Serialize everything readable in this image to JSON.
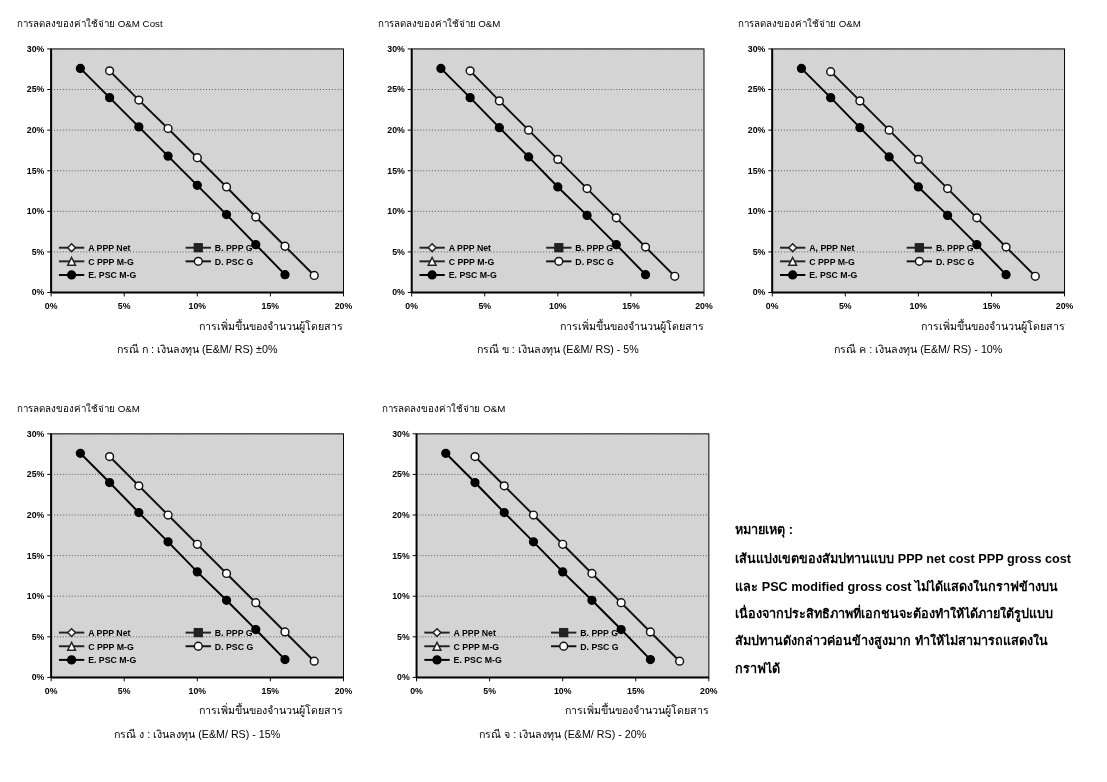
{
  "chart_data": [
    {
      "type": "line",
      "ylabel": "การลดลงของค่าใช้จ่าย O&M Cost",
      "xlabel": "การเพิ่มขึ้นของจำนวนผู้โดยสาร",
      "annotations": [
        "กรณี ก : เงินลงทุน (E&M/ RS) ±0%"
      ],
      "xlim": [
        0,
        20
      ],
      "ylim": [
        0,
        30
      ],
      "xticks": [
        {
          "value": 0,
          "label": "0%"
        },
        {
          "value": 5,
          "label": "5%"
        },
        {
          "value": 10,
          "label": "10%"
        },
        {
          "value": 15,
          "label": "15%"
        },
        {
          "value": 20,
          "label": "20%"
        }
      ],
      "yticks": [
        {
          "value": 0,
          "label": "0%"
        },
        {
          "value": 5,
          "label": "5%"
        },
        {
          "value": 10,
          "label": "10%"
        },
        {
          "value": 15,
          "label": "15%"
        },
        {
          "value": 20,
          "label": "20%"
        },
        {
          "value": 25,
          "label": "25%"
        },
        {
          "value": 30,
          "label": "30%"
        }
      ],
      "grid": "y",
      "legend": "bottom left",
      "series": [
        {
          "name": "A PPP Net",
          "color": "#222222",
          "marker": "diamond"
        },
        {
          "name": "B. PPP G",
          "color": "#222222",
          "marker": "square"
        },
        {
          "name": "C PPP M-G",
          "color": "#222222",
          "marker": "triangle"
        },
        {
          "name": "D. PSC G",
          "color": "#111111",
          "marker": "circle",
          "x": [
            4,
            6,
            8,
            10,
            12,
            14,
            16,
            18
          ],
          "values": [
            27.3,
            23.7,
            20.2,
            16.6,
            13.0,
            9.3,
            5.7,
            2.1
          ]
        },
        {
          "name": "E. PSC M-G",
          "color": "#000000",
          "marker": "circle",
          "x": [
            2,
            4,
            6,
            8,
            10,
            12,
            14,
            16
          ],
          "values": [
            27.6,
            24.0,
            20.4,
            16.8,
            13.2,
            9.6,
            5.9,
            2.2
          ]
        }
      ]
    },
    {
      "type": "line",
      "ylabel": "การลดลงของค่าใช้จ่าย O&M",
      "xlabel": "การเพิ่มขึ้นของจำนวนผู้โดยสาร",
      "annotations": [
        "กรณี ข : เงินลงทุน (E&M/ RS) - 5%"
      ],
      "xlim": [
        0,
        20
      ],
      "ylim": [
        0,
        30
      ],
      "xticks": [
        {
          "value": 0,
          "label": "0%"
        },
        {
          "value": 5,
          "label": "5%"
        },
        {
          "value": 10,
          "label": "10%"
        },
        {
          "value": 15,
          "label": "15%"
        },
        {
          "value": 20,
          "label": "20%"
        }
      ],
      "yticks": [
        {
          "value": 0,
          "label": "0%"
        },
        {
          "value": 5,
          "label": "5%"
        },
        {
          "value": 10,
          "label": "10%"
        },
        {
          "value": 15,
          "label": "15%"
        },
        {
          "value": 20,
          "label": "20%"
        },
        {
          "value": 25,
          "label": "25%"
        },
        {
          "value": 30,
          "label": "30%"
        }
      ],
      "grid": "y",
      "legend": "bottom left",
      "series": [
        {
          "name": "A PPP Net",
          "color": "#222222",
          "marker": "diamond"
        },
        {
          "name": "B. PPP G",
          "color": "#222222",
          "marker": "square"
        },
        {
          "name": "C PPP M-G",
          "color": "#222222",
          "marker": "triangle"
        },
        {
          "name": "D. PSC G",
          "color": "#111111",
          "marker": "circle",
          "x": [
            4,
            6,
            8,
            10,
            12,
            14,
            16,
            18
          ],
          "values": [
            27.3,
            23.6,
            20.0,
            16.4,
            12.8,
            9.2,
            5.6,
            2.0
          ]
        },
        {
          "name": "E. PSC M-G",
          "color": "#000000",
          "marker": "circle",
          "x": [
            2,
            4,
            6,
            8,
            10,
            12,
            14,
            16
          ],
          "values": [
            27.6,
            24.0,
            20.3,
            16.7,
            13.0,
            9.5,
            5.9,
            2.2
          ]
        }
      ]
    },
    {
      "type": "line",
      "ylabel": "การลดลงของค่าใช้จ่าย O&M",
      "xlabel": "การเพิ่มขึ้นของจำนวนผู้โดยสาร",
      "annotations": [
        "กรณี ค : เงินลงทุน (E&M/ RS) - 10%"
      ],
      "xlim": [
        0,
        20
      ],
      "ylim": [
        0,
        30
      ],
      "xticks": [
        {
          "value": 0,
          "label": "0%"
        },
        {
          "value": 5,
          "label": "5%"
        },
        {
          "value": 10,
          "label": "10%"
        },
        {
          "value": 15,
          "label": "15%"
        },
        {
          "value": 20,
          "label": "20%"
        }
      ],
      "yticks": [
        {
          "value": 0,
          "label": "0%"
        },
        {
          "value": 5,
          "label": "5%"
        },
        {
          "value": 10,
          "label": "10%"
        },
        {
          "value": 15,
          "label": "15%"
        },
        {
          "value": 20,
          "label": "20%"
        },
        {
          "value": 25,
          "label": "25%"
        },
        {
          "value": 30,
          "label": "30%"
        }
      ],
      "grid": "y",
      "legend": "bottom left",
      "series": [
        {
          "name": "A, PPP Net",
          "color": "#222222",
          "marker": "diamond"
        },
        {
          "name": "B. PPP G",
          "color": "#222222",
          "marker": "square"
        },
        {
          "name": "C PPP M-G",
          "color": "#222222",
          "marker": "triangle"
        },
        {
          "name": "D. PSC G",
          "color": "#111111",
          "marker": "circle",
          "x": [
            4,
            6,
            8,
            10,
            12,
            14,
            16,
            18
          ],
          "values": [
            27.2,
            23.6,
            20.0,
            16.4,
            12.8,
            9.2,
            5.6,
            2.0
          ]
        },
        {
          "name": "E. PSC M-G",
          "color": "#000000",
          "marker": "circle",
          "x": [
            2,
            4,
            6,
            8,
            10,
            12,
            14,
            16
          ],
          "values": [
            27.6,
            24.0,
            20.3,
            16.7,
            13.0,
            9.5,
            5.9,
            2.2
          ]
        }
      ]
    },
    {
      "type": "line",
      "ylabel": "การลดลงของค่าใช้จ่าย O&M",
      "xlabel": "การเพิ่มขึ้นของจำนวนผู้โดยสาร",
      "annotations": [
        "กรณี ง : เงินลงทุน (E&M/ RS) - 15%"
      ],
      "xlim": [
        0,
        20
      ],
      "ylim": [
        0,
        30
      ],
      "xticks": [
        {
          "value": 0,
          "label": "0%"
        },
        {
          "value": 5,
          "label": "5%"
        },
        {
          "value": 10,
          "label": "10%"
        },
        {
          "value": 15,
          "label": "15%"
        },
        {
          "value": 20,
          "label": "20%"
        }
      ],
      "yticks": [
        {
          "value": 0,
          "label": "0%"
        },
        {
          "value": 5,
          "label": "5%"
        },
        {
          "value": 10,
          "label": "10%"
        },
        {
          "value": 15,
          "label": "15%"
        },
        {
          "value": 20,
          "label": "20%"
        },
        {
          "value": 25,
          "label": "25%"
        },
        {
          "value": 30,
          "label": "30%"
        }
      ],
      "grid": "y",
      "legend": "bottom left",
      "series": [
        {
          "name": "A PPP Net",
          "color": "#222222",
          "marker": "diamond"
        },
        {
          "name": "B. PPP G",
          "color": "#222222",
          "marker": "square"
        },
        {
          "name": "C PPP M-G",
          "color": "#222222",
          "marker": "triangle"
        },
        {
          "name": "D. PSC G",
          "color": "#111111",
          "marker": "circle",
          "x": [
            4,
            6,
            8,
            10,
            12,
            14,
            16,
            18
          ],
          "values": [
            27.2,
            23.6,
            20.0,
            16.4,
            12.8,
            9.2,
            5.6,
            2.0
          ]
        },
        {
          "name": "E. PSC M-G",
          "color": "#000000",
          "marker": "circle",
          "x": [
            2,
            4,
            6,
            8,
            10,
            12,
            14,
            16
          ],
          "values": [
            27.6,
            24.0,
            20.3,
            16.7,
            13.0,
            9.5,
            5.9,
            2.2
          ]
        }
      ]
    },
    {
      "type": "line",
      "ylabel": "การลดลงของค่าใช้จ่าย O&M",
      "xlabel": "การเพิ่มขึ้นของจำนวนผู้โดยสาร",
      "annotations": [
        "กรณี จ : เงินลงทุน (E&M/ RS) - 20%"
      ],
      "xlim": [
        0,
        20
      ],
      "ylim": [
        0,
        30
      ],
      "xticks": [
        {
          "value": 0,
          "label": "0%"
        },
        {
          "value": 5,
          "label": "5%"
        },
        {
          "value": 10,
          "label": "10%"
        },
        {
          "value": 15,
          "label": "15%"
        },
        {
          "value": 20,
          "label": "20%"
        }
      ],
      "yticks": [
        {
          "value": 0,
          "label": "0%"
        },
        {
          "value": 5,
          "label": "5%"
        },
        {
          "value": 10,
          "label": "10%"
        },
        {
          "value": 15,
          "label": "15%"
        },
        {
          "value": 20,
          "label": "20%"
        },
        {
          "value": 25,
          "label": "25%"
        },
        {
          "value": 30,
          "label": "30%"
        }
      ],
      "grid": "y",
      "legend": "bottom left",
      "series": [
        {
          "name": "A PPP Net",
          "color": "#222222",
          "marker": "diamond"
        },
        {
          "name": "B. PPP G",
          "color": "#222222",
          "marker": "square"
        },
        {
          "name": "C PPP M-G",
          "color": "#222222",
          "marker": "triangle"
        },
        {
          "name": "D. PSC G",
          "color": "#111111",
          "marker": "circle",
          "x": [
            4,
            6,
            8,
            10,
            12,
            14,
            16,
            18
          ],
          "values": [
            27.2,
            23.6,
            20.0,
            16.4,
            12.8,
            9.2,
            5.6,
            2.0
          ]
        },
        {
          "name": "E. PSC M-G",
          "color": "#000000",
          "marker": "circle",
          "x": [
            2,
            4,
            6,
            8,
            10,
            12,
            14,
            16
          ],
          "values": [
            27.6,
            24.0,
            20.3,
            16.7,
            13.0,
            9.5,
            5.9,
            2.2
          ]
        }
      ]
    },
    {
      "type": "other",
      "title": "หมายเหตุ :",
      "annotations": [
        "เส้นแบ่งเขตของสัมปทานแบบ PPP net cost PPP gross cost และ PSC modified gross cost ไม่ได้แสดงในกราฟข้างบน เนื่องจากประสิทธิภาพที่เอกชนจะต้องทำให้ได้ภายใต้รูปแบบสัมปทานดังกล่าวค่อนข้างสูงมาก ทำให้ไม่สามารถแสดงในกราฟได้"
      ]
    }
  ]
}
